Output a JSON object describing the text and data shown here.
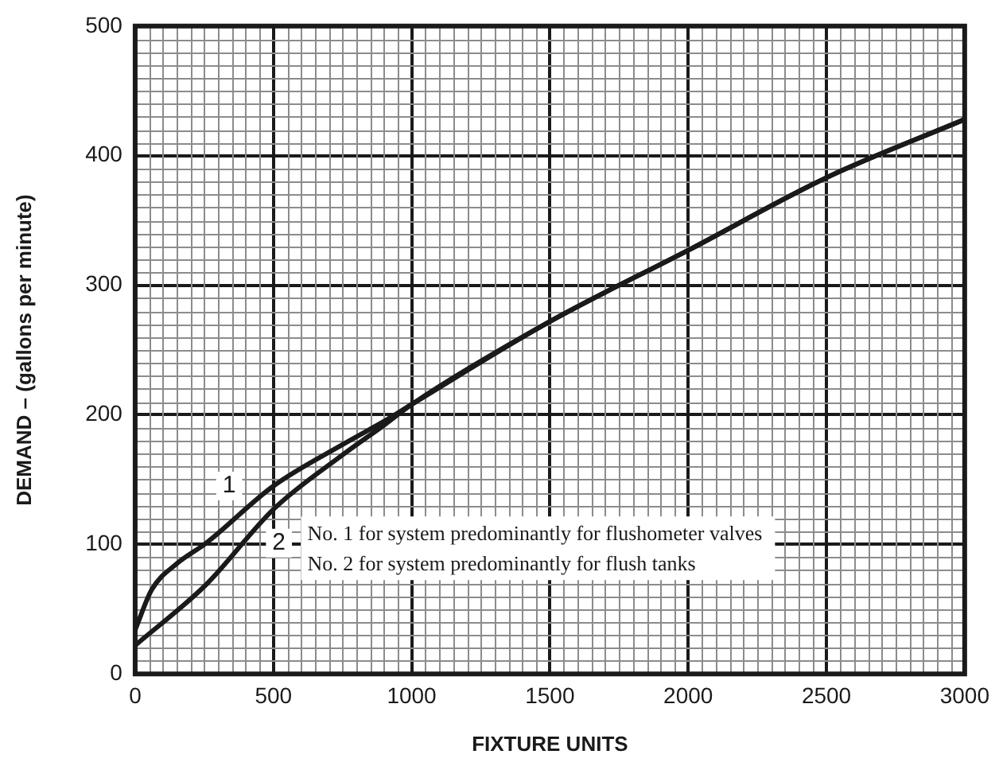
{
  "chart_data": {
    "type": "line",
    "xlabel": "FIXTURE UNITS",
    "ylabel": "DEMAND – (gallons per minute)",
    "xlim": [
      0,
      3000
    ],
    "xticks": [
      0,
      500,
      1000,
      1500,
      2000,
      2500,
      3000
    ],
    "ylim": [
      0,
      500
    ],
    "yticks": [
      0,
      100,
      200,
      300,
      400,
      500
    ],
    "grid": true,
    "legend": false,
    "marker": "none",
    "line_style": "solid",
    "series": [
      {
        "color": "#1a1a1a",
        "x": [
          0,
          60,
          150,
          257,
          500,
          750,
          900,
          1000,
          1500,
          2000,
          2500,
          3000
        ],
        "values": [
          34,
          65,
          85,
          101,
          145,
          177,
          195,
          208,
          272,
          327,
          383,
          428
        ]
      },
      {
        "color": "#1a1a1a",
        "x": [
          0,
          257,
          500,
          750,
          900,
          1000,
          1500,
          2000,
          2500,
          3000
        ],
        "values": [
          22,
          69,
          127,
          169,
          192,
          208,
          272,
          327,
          383,
          428
        ]
      }
    ],
    "annotations": [
      {
        "text": "1",
        "x": 340,
        "y": 145
      },
      {
        "text": "2",
        "x": 520,
        "y": 101
      },
      "No. 1 for system predominantly for flushometer valves",
      "No. 2 for system predominantly for flush tanks"
    ]
  }
}
